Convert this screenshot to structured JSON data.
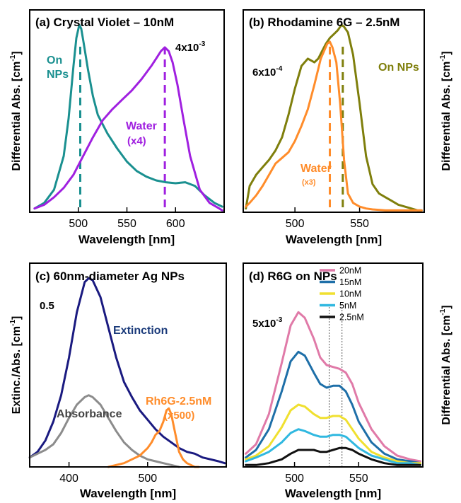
{
  "chart_data": [
    {
      "type": "line",
      "panel": "a",
      "title": "(a) Crystal Violet – 10nM",
      "xlabel": "Wavelength [nm]",
      "ylabel": "Differential  Abs. [cm",
      "ylabel_sup": "-1",
      "ylabel_end": "]",
      "xlim": [
        450,
        650
      ],
      "ylim": [
        0,
        1.08
      ],
      "xticks": [
        500,
        550,
        600
      ],
      "scale_label": "4x10",
      "scale_sup": "-3",
      "series": [
        {
          "name": "On NPs",
          "color": "#1a9090",
          "x": [
            455,
            465,
            475,
            485,
            490,
            495,
            498,
            501,
            503,
            505,
            510,
            515,
            520,
            530,
            540,
            550,
            560,
            570,
            580,
            590,
            600,
            610,
            620,
            630,
            640,
            648
          ],
          "y": [
            0.02,
            0.05,
            0.12,
            0.3,
            0.5,
            0.78,
            0.93,
            1.0,
            0.98,
            0.92,
            0.76,
            0.62,
            0.52,
            0.42,
            0.34,
            0.27,
            0.22,
            0.19,
            0.17,
            0.16,
            0.155,
            0.16,
            0.14,
            0.09,
            0.05,
            0.03
          ]
        },
        {
          "name": "Water",
          "color": "#a020e0",
          "x": [
            455,
            465,
            475,
            485,
            495,
            505,
            515,
            525,
            535,
            545,
            555,
            565,
            575,
            580,
            585,
            589,
            593,
            597,
            602,
            608,
            615,
            625,
            635,
            645,
            648
          ],
          "y": [
            0.02,
            0.04,
            0.08,
            0.13,
            0.2,
            0.3,
            0.4,
            0.49,
            0.55,
            0.6,
            0.65,
            0.71,
            0.78,
            0.82,
            0.86,
            0.88,
            0.86,
            0.8,
            0.68,
            0.5,
            0.3,
            0.12,
            0.05,
            0.02,
            0.01
          ]
        }
      ],
      "annotations": [
        {
          "text": "On",
          "color": "#1a9090"
        },
        {
          "text": "NPs",
          "color": "#1a9090"
        },
        {
          "text": "Water",
          "color": "#a020e0"
        },
        {
          "text": "(x4)",
          "color": "#a020e0"
        }
      ],
      "dashed_lines": [
        {
          "x": 502,
          "color": "#1a9090"
        },
        {
          "x": 589,
          "color": "#a020e0"
        }
      ]
    },
    {
      "type": "line",
      "panel": "b",
      "title": "(b) Rhodamine 6G – 2.5nM",
      "xlabel": "Wavelength [nm]",
      "ylabel": "Differential  Abs. [cm",
      "ylabel_sup": "-1",
      "ylabel_end": "]",
      "xlim": [
        460,
        600
      ],
      "ylim": [
        0,
        1.08
      ],
      "xticks": [
        500,
        550
      ],
      "scale_label": "6x10",
      "scale_sup": "-4",
      "series": [
        {
          "name": "On NPs",
          "color": "#7f7f0c",
          "x": [
            462,
            465,
            470,
            475,
            480,
            485,
            490,
            495,
            500,
            505,
            510,
            515,
            518,
            521,
            524,
            527,
            530,
            533,
            536,
            538,
            541,
            545,
            550,
            555,
            560,
            565,
            570,
            575,
            580,
            585,
            590,
            595,
            598
          ],
          "y": [
            0.02,
            0.14,
            0.2,
            0.24,
            0.28,
            0.33,
            0.4,
            0.52,
            0.66,
            0.78,
            0.82,
            0.8,
            0.82,
            0.86,
            0.9,
            0.93,
            0.95,
            0.97,
            1.0,
            0.99,
            0.96,
            0.84,
            0.58,
            0.3,
            0.15,
            0.1,
            0.08,
            0.06,
            0.04,
            0.03,
            0.02,
            0.01,
            0.01
          ]
        },
        {
          "name": "Water",
          "color": "#ff8c2a",
          "x": [
            462,
            465,
            470,
            475,
            480,
            485,
            490,
            495,
            500,
            505,
            510,
            515,
            520,
            525,
            527,
            529,
            532,
            535,
            538,
            541,
            545,
            550,
            555,
            560,
            570,
            580,
            590,
            598
          ],
          "y": [
            0.03,
            0.05,
            0.09,
            0.14,
            0.2,
            0.26,
            0.29,
            0.32,
            0.38,
            0.46,
            0.55,
            0.68,
            0.82,
            0.9,
            0.91,
            0.88,
            0.8,
            0.58,
            0.28,
            0.1,
            0.05,
            0.03,
            0.02,
            0.015,
            0.01,
            0.01,
            0.01,
            0.01
          ]
        }
      ],
      "annotations": [
        {
          "text": "On NPs",
          "color": "#7f7f0c"
        },
        {
          "text": "Water",
          "color": "#ff8c2a"
        },
        {
          "text": "(x3)",
          "color": "#ff8c2a"
        }
      ],
      "dashed_lines": [
        {
          "x": 527,
          "color": "#ff8c2a"
        },
        {
          "x": 537,
          "color": "#7f7f0c"
        }
      ]
    },
    {
      "type": "line",
      "panel": "c",
      "title": "(c) 60nm-diameter Ag NPs",
      "xlabel": "Wavelength [nm]",
      "ylabel": "Extinc./Abs. [cm",
      "ylabel_sup": "-1",
      "ylabel_end": "]",
      "xlim": [
        350,
        600
      ],
      "ylim": [
        0,
        1.08
      ],
      "xticks": [
        400,
        500
      ],
      "scale_label": "0.5",
      "scale_sup": "",
      "series": [
        {
          "name": "Extinction",
          "color": "#1a1a80",
          "x": [
            350,
            360,
            370,
            380,
            390,
            400,
            410,
            420,
            425,
            430,
            440,
            450,
            460,
            470,
            480,
            490,
            500,
            510,
            520,
            530,
            540,
            550,
            560,
            570,
            580,
            590,
            598
          ],
          "y": [
            0.05,
            0.08,
            0.14,
            0.24,
            0.38,
            0.58,
            0.82,
            0.98,
            1.0,
            0.99,
            0.9,
            0.74,
            0.58,
            0.45,
            0.37,
            0.3,
            0.25,
            0.2,
            0.16,
            0.13,
            0.1,
            0.08,
            0.07,
            0.05,
            0.04,
            0.03,
            0.02
          ]
        },
        {
          "name": "Absorbance",
          "color": "#8c8c8c",
          "x": [
            350,
            360,
            370,
            380,
            390,
            400,
            410,
            420,
            425,
            430,
            440,
            450,
            460,
            470,
            480,
            490,
            500,
            510,
            520,
            530,
            540
          ],
          "y": [
            0.05,
            0.07,
            0.09,
            0.12,
            0.18,
            0.26,
            0.33,
            0.37,
            0.38,
            0.37,
            0.33,
            0.26,
            0.19,
            0.13,
            0.09,
            0.06,
            0.04,
            0.03,
            0.02,
            0.01,
            0.0
          ]
        },
        {
          "name": "Rh6G-2.5nM (x500)",
          "color": "#ff8c2a",
          "x": [
            450,
            460,
            470,
            480,
            490,
            500,
            505,
            510,
            515,
            520,
            524,
            527,
            530,
            535,
            540,
            545,
            550,
            555,
            560,
            565
          ],
          "y": [
            0.0,
            0.01,
            0.02,
            0.04,
            0.06,
            0.1,
            0.13,
            0.17,
            0.19,
            0.24,
            0.3,
            0.31,
            0.28,
            0.18,
            0.08,
            0.04,
            0.02,
            0.01,
            0.0,
            0.0
          ]
        }
      ],
      "annotations": [
        {
          "text": "Extinction",
          "color": "#1a3a7a"
        },
        {
          "text": "Absorbance",
          "color": "#444444"
        },
        {
          "text": "Rh6G-2.5nM",
          "color": "#ff8c2a"
        },
        {
          "text": "(x500)",
          "color": "#ff8c2a"
        }
      ]
    },
    {
      "type": "line",
      "panel": "d",
      "title": "(d) R6G on NPs",
      "xlabel": "Wavelength [nm]",
      "ylabel": "Differential  Abs. [cm",
      "ylabel_sup": "-1",
      "ylabel_end": "]",
      "xlim": [
        460,
        600
      ],
      "ylim": [
        0,
        1.08
      ],
      "xticks": [
        500,
        550
      ],
      "scale_label": "5x10",
      "scale_sup": "-3",
      "legend_position": "top-right",
      "x": [
        462,
        470,
        480,
        490,
        497,
        503,
        508,
        515,
        520,
        525,
        530,
        535,
        540,
        545,
        550,
        560,
        570,
        580,
        590,
        598
      ],
      "series": [
        {
          "name": "20nM",
          "color": "#e07aa8",
          "y": [
            0.07,
            0.12,
            0.28,
            0.55,
            0.75,
            0.82,
            0.79,
            0.68,
            0.58,
            0.54,
            0.53,
            0.52,
            0.5,
            0.44,
            0.34,
            0.2,
            0.11,
            0.06,
            0.04,
            0.03
          ]
        },
        {
          "name": "15nM",
          "color": "#1e6fa8",
          "y": [
            0.05,
            0.09,
            0.2,
            0.4,
            0.56,
            0.61,
            0.59,
            0.5,
            0.44,
            0.42,
            0.43,
            0.43,
            0.4,
            0.33,
            0.24,
            0.13,
            0.07,
            0.04,
            0.03,
            0.02
          ]
        },
        {
          "name": "10nM",
          "color": "#f0e030",
          "y": [
            0.04,
            0.06,
            0.11,
            0.21,
            0.3,
            0.33,
            0.32,
            0.28,
            0.26,
            0.26,
            0.27,
            0.27,
            0.25,
            0.2,
            0.15,
            0.08,
            0.05,
            0.03,
            0.02,
            0.02
          ]
        },
        {
          "name": "5nM",
          "color": "#30b8e0",
          "y": [
            0.03,
            0.05,
            0.08,
            0.13,
            0.18,
            0.2,
            0.19,
            0.17,
            0.16,
            0.16,
            0.17,
            0.17,
            0.16,
            0.13,
            0.1,
            0.06,
            0.04,
            0.02,
            0.02,
            0.01
          ]
        },
        {
          "name": "2.5nM",
          "color": "#111111",
          "y": [
            0.01,
            0.01,
            0.02,
            0.04,
            0.07,
            0.09,
            0.09,
            0.09,
            0.08,
            0.08,
            0.09,
            0.1,
            0.1,
            0.09,
            0.07,
            0.04,
            0.02,
            0.01,
            0.01,
            0.01
          ]
        }
      ],
      "dotted_lines": [
        {
          "x": 527
        },
        {
          "x": 537
        }
      ]
    }
  ]
}
